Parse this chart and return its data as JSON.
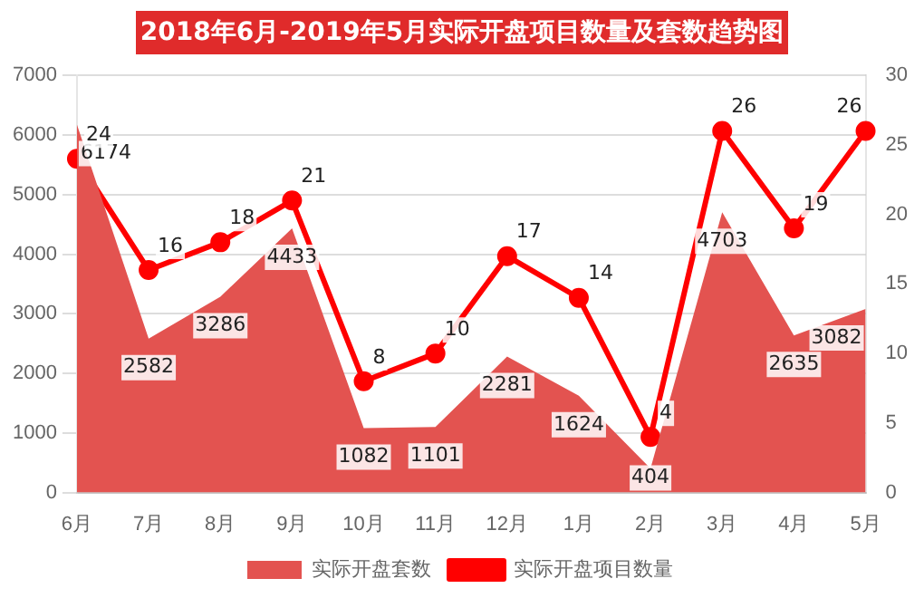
{
  "chart_data": {
    "type": "area",
    "title": "2018年6月-2019年5月实际开盘项目数量及套数趋势图",
    "categories": [
      "6月",
      "7月",
      "8月",
      "9月",
      "10月",
      "11月",
      "12月",
      "1月",
      "2月",
      "3月",
      "4月",
      "5月"
    ],
    "series": [
      {
        "name": "实际开盘套数",
        "color": "#e35350",
        "values": [
          6174,
          2582,
          3286,
          4433,
          1082,
          1101,
          2281,
          1624,
          404,
          4703,
          2635,
          3082
        ]
      },
      {
        "name": "实际开盘项目数量",
        "type": "line",
        "marker": "circle",
        "axis": "y2",
        "color": "#ff0000",
        "values": [
          24,
          16,
          18,
          21,
          8,
          10,
          17,
          14,
          4,
          26,
          19,
          26
        ]
      }
    ],
    "ylim": [
      0,
      7000
    ],
    "yticks": [
      0,
      1000,
      2000,
      3000,
      4000,
      5000,
      6000,
      7000
    ],
    "y2lim": [
      0,
      30
    ],
    "y2ticks": [
      0,
      5,
      10,
      15,
      20,
      25,
      30
    ],
    "grid": "y",
    "legend": "bottom",
    "data_labels": true
  }
}
